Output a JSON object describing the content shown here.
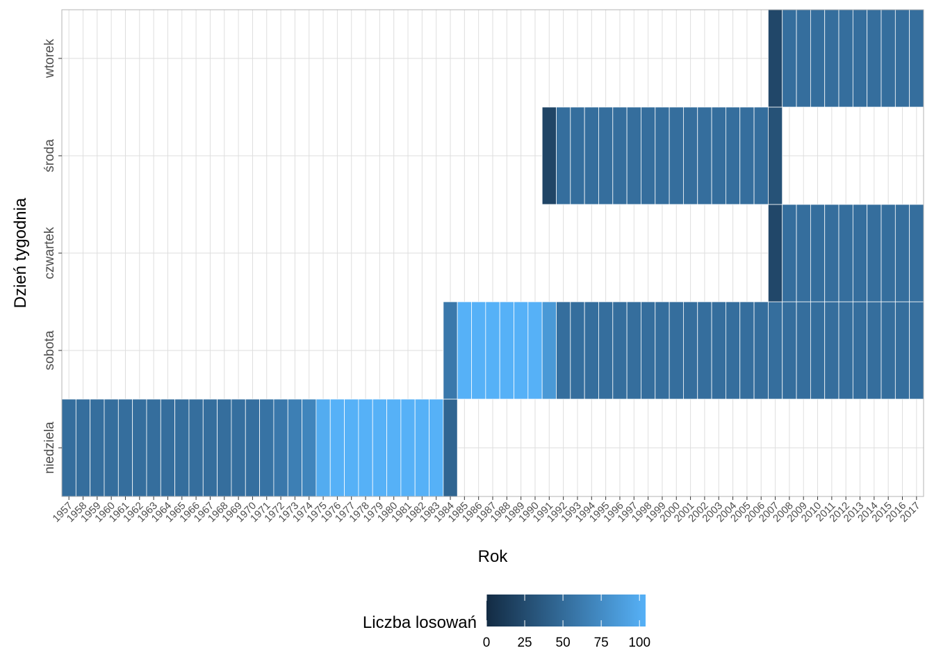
{
  "chart_data": {
    "type": "heatmap",
    "title": "",
    "xlabel": "Rok",
    "ylabel": "Dzień tygodnia",
    "x_categories": [
      "1957",
      "1958",
      "1959",
      "1960",
      "1961",
      "1962",
      "1963",
      "1964",
      "1965",
      "1966",
      "1967",
      "1968",
      "1969",
      "1970",
      "1971",
      "1972",
      "1973",
      "1974",
      "1975",
      "1976",
      "1977",
      "1978",
      "1979",
      "1980",
      "1981",
      "1982",
      "1983",
      "1984",
      "1985",
      "1986",
      "1987",
      "1988",
      "1989",
      "1990",
      "1991",
      "1992",
      "1993",
      "1994",
      "1995",
      "1996",
      "1997",
      "1998",
      "1999",
      "2000",
      "2001",
      "2002",
      "2003",
      "2004",
      "2005",
      "2006",
      "2007",
      "2008",
      "2009",
      "2010",
      "2011",
      "2012",
      "2013",
      "2014",
      "2015",
      "2016",
      "2017"
    ],
    "y_categories": [
      "niedziela",
      "sobota",
      "czwartek",
      "środa",
      "wtorek"
    ],
    "series": [
      {
        "day": "niedziela",
        "years": [
          "1957",
          "1958",
          "1959",
          "1960",
          "1961",
          "1962",
          "1963",
          "1964",
          "1965",
          "1966",
          "1967",
          "1968",
          "1969",
          "1970",
          "1971",
          "1972",
          "1973",
          "1974",
          "1975",
          "1976",
          "1977",
          "1978",
          "1979",
          "1980",
          "1981",
          "1982",
          "1983",
          "1984"
        ],
        "values": [
          52,
          52,
          52,
          52,
          52,
          52,
          52,
          52,
          52,
          52,
          52,
          52,
          53,
          53,
          56,
          60,
          65,
          70,
          100,
          104,
          104,
          104,
          104,
          104,
          104,
          104,
          104,
          45
        ]
      },
      {
        "day": "sobota",
        "years": [
          "1984",
          "1985",
          "1986",
          "1987",
          "1988",
          "1989",
          "1990",
          "1991",
          "1992",
          "1993",
          "1994",
          "1995",
          "1996",
          "1997",
          "1998",
          "1999",
          "2000",
          "2001",
          "2002",
          "2003",
          "2004",
          "2005",
          "2006",
          "2007",
          "2008",
          "2009",
          "2010",
          "2011",
          "2012",
          "2013",
          "2014",
          "2015",
          "2016",
          "2017"
        ],
        "values": [
          60,
          104,
          104,
          104,
          104,
          104,
          104,
          85,
          52,
          52,
          52,
          52,
          52,
          52,
          52,
          52,
          52,
          52,
          52,
          52,
          52,
          52,
          52,
          52,
          52,
          52,
          52,
          52,
          52,
          52,
          52,
          52,
          52,
          52
        ]
      },
      {
        "day": "czwartek",
        "years": [
          "2007",
          "2008",
          "2009",
          "2010",
          "2011",
          "2012",
          "2013",
          "2014",
          "2015",
          "2016",
          "2017"
        ],
        "values": [
          22,
          52,
          52,
          52,
          52,
          52,
          52,
          52,
          52,
          52,
          52
        ]
      },
      {
        "day": "środa",
        "years": [
          "1991",
          "1992",
          "1993",
          "1994",
          "1995",
          "1996",
          "1997",
          "1998",
          "1999",
          "2000",
          "2001",
          "2002",
          "2003",
          "2004",
          "2005",
          "2006",
          "2007"
        ],
        "values": [
          20,
          52,
          52,
          52,
          52,
          52,
          52,
          52,
          52,
          52,
          52,
          52,
          52,
          52,
          52,
          52,
          30
        ]
      },
      {
        "day": "wtorek",
        "years": [
          "2007",
          "2008",
          "2009",
          "2010",
          "2011",
          "2012",
          "2013",
          "2014",
          "2015",
          "2016",
          "2017"
        ],
        "values": [
          22,
          52,
          52,
          52,
          52,
          52,
          52,
          52,
          52,
          52,
          52
        ]
      }
    ],
    "legend": {
      "title": "Liczba losowań",
      "position": "bottom",
      "ticks": [
        "0",
        "25",
        "50",
        "75",
        "100"
      ],
      "range": [
        0,
        104
      ],
      "color_low": "#132B43",
      "color_high": "#56B1F7"
    },
    "grid": true
  }
}
